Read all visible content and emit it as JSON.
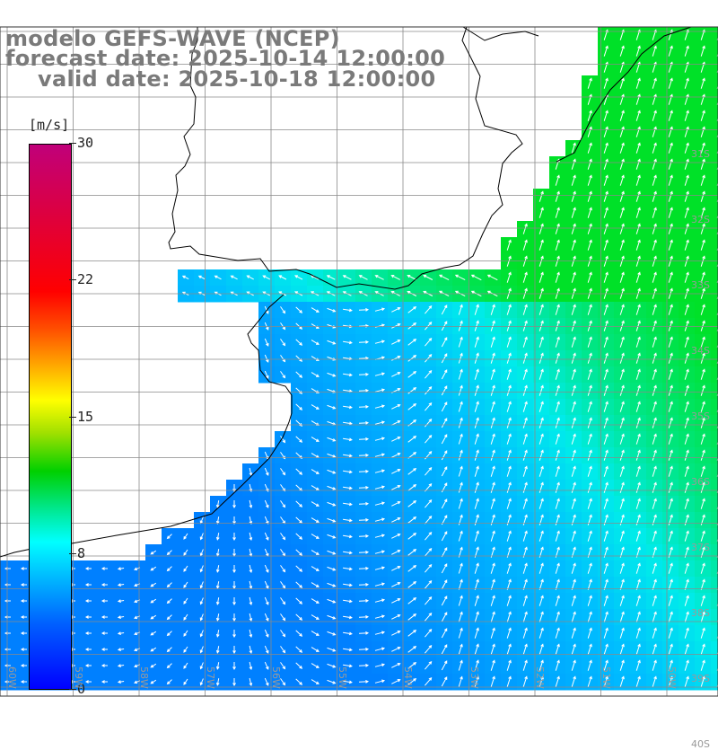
{
  "title": {
    "line1": "modelo GEFS-WAVE (NCEP)",
    "line2": "forecast date: 2025-10-14 12:00:00",
    "line3": "valid date: 2025-10-18 12:00:00"
  },
  "colorbar": {
    "unit": "[m/s]",
    "min": 0,
    "max": 30,
    "ticks": [
      "30",
      "22",
      "15",
      "8",
      "0"
    ]
  },
  "colors": {
    "land": "#ffffff",
    "coastline": "#000000",
    "grid": "#888888",
    "low_wind": "#0080ff",
    "mid_wind": "#00e0ff",
    "high_wind": "#00e040"
  },
  "lon_labels": [
    "60W",
    "59W",
    "58W",
    "57W",
    "56W",
    "55W",
    "54W",
    "53W",
    "52W",
    "51W",
    "50W"
  ],
  "lat_labels": [
    "31S",
    "32S",
    "33S",
    "34S",
    "35S",
    "36S",
    "37S",
    "38S",
    "39S",
    "40S"
  ],
  "wind_field": {
    "description_key": "wind speed shading with white direction arrows",
    "speed_range_ms": [
      6,
      13
    ],
    "dominant_direction_east": "from S-SW toward N-NE",
    "dominant_direction_west": "from E toward W"
  }
}
